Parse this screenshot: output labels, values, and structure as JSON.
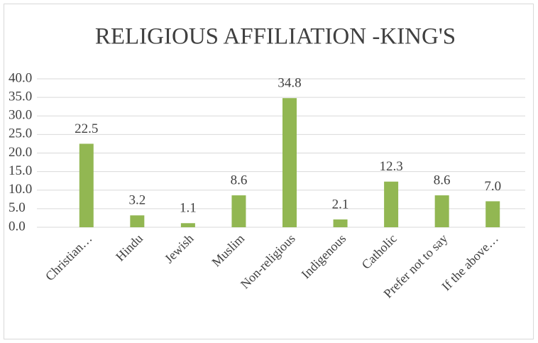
{
  "chart_data": {
    "type": "bar",
    "title": "RELIGIOUS AFFILIATION -KING'S",
    "categories": [
      "Christian…",
      "Hindu",
      "Jewish",
      "Muslim",
      "Non-religious",
      "Indigenous",
      "Catholic",
      "Prefer not to say",
      "If the above…"
    ],
    "values": [
      22.5,
      3.2,
      1.1,
      8.6,
      34.8,
      2.1,
      12.3,
      8.6,
      7.0
    ],
    "value_labels": [
      "22.5",
      "3.2",
      "1.1",
      "8.6",
      "34.8",
      "2.1",
      "12.3",
      "8.6",
      "7.0"
    ],
    "color": "#92b752",
    "ylim": [
      0,
      40
    ],
    "yticks": [
      {
        "value": 0,
        "label": "0.0"
      },
      {
        "value": 5,
        "label": "5.0"
      },
      {
        "value": 10,
        "label": "10.0"
      },
      {
        "value": 15,
        "label": "15.0"
      },
      {
        "value": 20,
        "label": "20.0"
      },
      {
        "value": 25,
        "label": "25.0"
      },
      {
        "value": 30,
        "label": "30.0"
      },
      {
        "value": 35,
        "label": "35.0"
      },
      {
        "value": 40,
        "label": "40.0"
      }
    ],
    "grid": true
  }
}
